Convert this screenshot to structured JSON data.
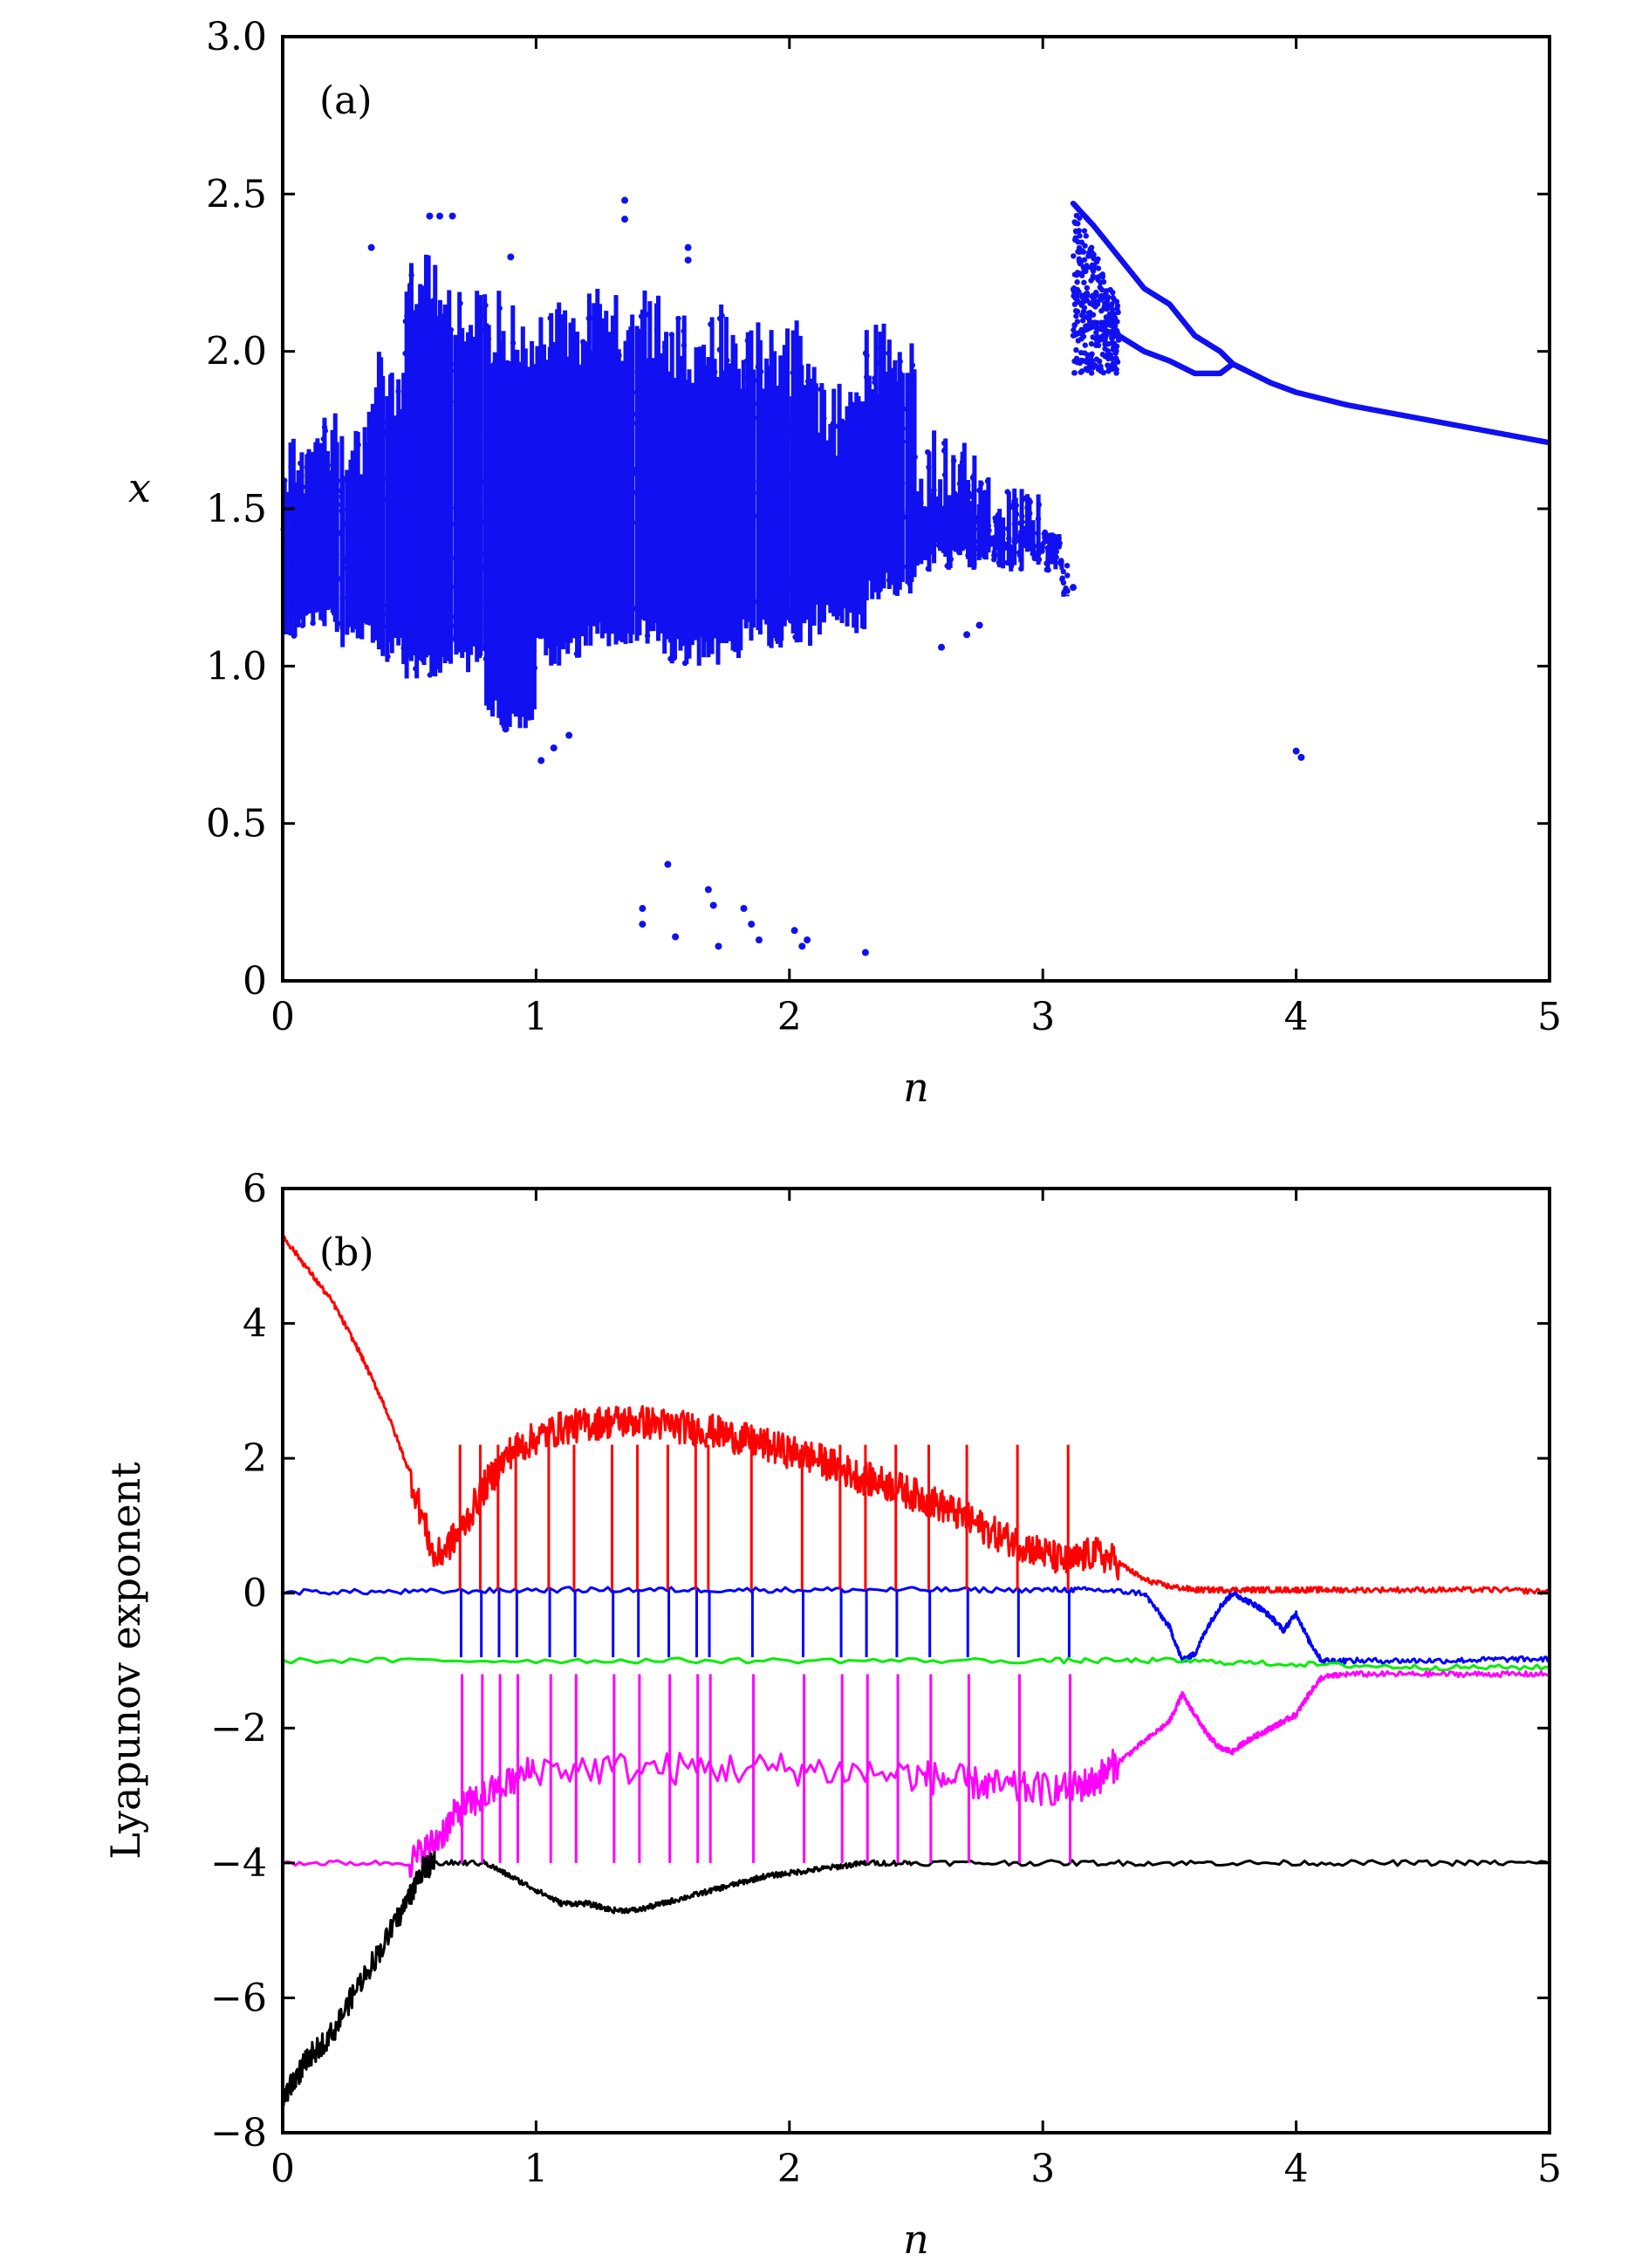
{
  "chart_data": [
    {
      "type": "scatter",
      "panel_label": "(a)",
      "xlabel": "n",
      "ylabel": "x",
      "xlim": [
        0,
        5
      ],
      "ylim": [
        0,
        3
      ],
      "xticks": [
        "0",
        "1",
        "2",
        "3",
        "4",
        "5"
      ],
      "yticks": [
        "0",
        "0.5",
        "1.0",
        "1.5",
        "2.0",
        "2.5",
        "3.0"
      ],
      "color": "#1010f0",
      "series": [
        {
          "bands": [
            {
              "x": [
                0.0,
                0.1
              ],
              "y": [
                1.08,
                1.75
              ]
            },
            {
              "x": [
                0.1,
                0.2
              ],
              "y": [
                1.1,
                1.8
              ]
            },
            {
              "x": [
                0.2,
                0.35
              ],
              "y": [
                1.05,
                1.85
              ]
            },
            {
              "x": [
                0.35,
                0.48
              ],
              "y": [
                1.0,
                2.0
              ]
            },
            {
              "x": [
                0.48,
                0.65
              ],
              "y": [
                0.95,
                2.35
              ]
            },
            {
              "x": [
                0.65,
                0.8
              ],
              "y": [
                0.98,
                2.2
              ]
            },
            {
              "x": [
                0.8,
                1.0
              ],
              "y": [
                0.8,
                2.2
              ]
            },
            {
              "x": [
                1.0,
                1.2
              ],
              "y": [
                1.0,
                2.2
              ]
            },
            {
              "x": [
                1.2,
                1.5
              ],
              "y": [
                1.05,
                2.2
              ]
            },
            {
              "x": [
                1.5,
                1.8
              ],
              "y": [
                1.0,
                2.15
              ]
            },
            {
              "x": [
                1.8,
                2.1
              ],
              "y": [
                1.05,
                2.1
              ]
            },
            {
              "x": [
                2.1,
                2.3
              ],
              "y": [
                1.1,
                1.9
              ]
            },
            {
              "x": [
                2.3,
                2.5
              ],
              "y": [
                1.2,
                2.1
              ]
            },
            {
              "x": [
                2.5,
                2.75
              ],
              "y": [
                1.3,
                1.75
              ]
            },
            {
              "x": [
                2.75,
                3.0
              ],
              "y": [
                1.3,
                1.6
              ]
            },
            {
              "x": [
                3.0,
                3.1
              ],
              "y": [
                1.3,
                1.45
              ]
            }
          ],
          "branch": {
            "x": [
              3.12,
              3.2,
              3.3,
              3.4,
              3.5,
              3.6,
              3.7,
              3.75,
              3.8,
              3.9,
              4.0,
              4.2,
              4.4,
              4.6,
              4.8,
              5.0
            ],
            "y": [
              2.05,
              2.08,
              2.05,
              2.0,
              1.97,
              1.93,
              1.93,
              1.96,
              1.94,
              1.9,
              1.87,
              1.83,
              1.8,
              1.77,
              1.74,
              1.71
            ]
          },
          "upper_branch": {
            "x": [
              3.12,
              3.2,
              3.3,
              3.4,
              3.5,
              3.6,
              3.7,
              3.75
            ],
            "y": [
              2.47,
              2.4,
              2.3,
              2.2,
              2.15,
              2.05,
              2.0,
              1.96
            ]
          },
          "isolated_points": [
            [
              0.35,
              2.33
            ],
            [
              0.58,
              2.43
            ],
            [
              0.62,
              2.43
            ],
            [
              0.67,
              2.43
            ],
            [
              0.9,
              2.3
            ],
            [
              1.02,
              0.7
            ],
            [
              1.07,
              0.74
            ],
            [
              1.13,
              0.78
            ],
            [
              0.88,
              0.8
            ],
            [
              1.35,
              2.48
            ],
            [
              1.35,
              2.42
            ],
            [
              1.6,
              2.33
            ],
            [
              1.6,
              2.29
            ],
            [
              1.42,
              0.23
            ],
            [
              1.42,
              0.18
            ],
            [
              1.52,
              0.37
            ],
            [
              1.55,
              0.14
            ],
            [
              1.68,
              0.29
            ],
            [
              1.7,
              0.24
            ],
            [
              1.72,
              0.11
            ],
            [
              1.82,
              0.23
            ],
            [
              1.85,
              0.18
            ],
            [
              1.88,
              0.13
            ],
            [
              2.02,
              0.16
            ],
            [
              2.05,
              0.11
            ],
            [
              2.07,
              0.13
            ],
            [
              2.3,
              0.09
            ],
            [
              4.0,
              0.73
            ],
            [
              4.02,
              0.71
            ],
            [
              2.75,
              1.13
            ],
            [
              2.7,
              1.1
            ],
            [
              2.6,
              1.06
            ],
            [
              3.12,
              1.25
            ]
          ]
        }
      ]
    },
    {
      "type": "line",
      "panel_label": "(b)",
      "xlabel": "n",
      "ylabel": "Lyapunov exponent",
      "xlim": [
        0,
        5
      ],
      "ylim": [
        -8,
        6
      ],
      "xticks": [
        "0",
        "1",
        "2",
        "3",
        "4",
        "5"
      ],
      "yticks": [
        "−8",
        "−6",
        "−4",
        "−2",
        "0",
        "2",
        "4",
        "6"
      ],
      "series": [
        {
          "color": "#ff0000",
          "x": [
            0.0,
            0.1,
            0.2,
            0.3,
            0.4,
            0.5,
            0.6,
            0.7,
            0.8,
            0.9,
            1.0,
            1.1,
            1.2,
            1.3,
            1.4,
            1.5,
            1.6,
            1.7,
            1.8,
            1.9,
            2.0,
            2.1,
            2.2,
            2.3,
            2.4,
            2.5,
            2.6,
            2.7,
            2.8,
            2.9,
            3.0,
            3.1,
            3.2,
            3.3,
            3.4,
            3.5,
            3.6,
            3.7,
            3.8,
            3.9,
            4.0,
            4.1,
            4.2,
            4.4,
            4.6,
            4.8,
            5.0
          ],
          "y": [
            5.3,
            4.8,
            4.3,
            3.6,
            2.8,
            1.8,
            0.5,
            0.9,
            1.6,
            2.1,
            2.3,
            2.45,
            2.5,
            2.55,
            2.55,
            2.5,
            2.45,
            2.4,
            2.3,
            2.2,
            2.1,
            2.0,
            1.85,
            1.7,
            1.6,
            1.45,
            1.3,
            1.1,
            0.9,
            0.75,
            0.6,
            0.45,
            0.6,
            0.45,
            0.2,
            0.1,
            0.05,
            0.05,
            0.05,
            0.05,
            0.05,
            0.05,
            0.05,
            0.05,
            0.05,
            0.05,
            0.02
          ]
        },
        {
          "color": "#0000ff",
          "x": [
            0.0,
            0.5,
            1.0,
            1.5,
            2.0,
            2.5,
            3.0,
            3.2,
            3.4,
            3.5,
            3.55,
            3.6,
            3.65,
            3.7,
            3.75,
            3.8,
            3.85,
            3.9,
            3.95,
            4.0,
            4.05,
            4.1,
            4.2,
            4.4,
            4.6,
            4.8,
            5.0
          ],
          "y": [
            0.02,
            0.02,
            0.05,
            0.05,
            0.05,
            0.05,
            0.05,
            0.05,
            0.0,
            -0.5,
            -1.0,
            -0.9,
            -0.5,
            -0.2,
            0.0,
            -0.1,
            -0.2,
            -0.35,
            -0.55,
            -0.3,
            -0.7,
            -1.0,
            -1.0,
            -1.0,
            -1.0,
            -0.98,
            -0.98
          ]
        },
        {
          "color": "#00ee00",
          "x": [
            0.0,
            1.0,
            2.0,
            3.0,
            3.5,
            4.0,
            4.5,
            5.0
          ],
          "y": [
            -1.0,
            -1.0,
            -1.0,
            -1.0,
            -1.0,
            -1.05,
            -1.1,
            -1.1
          ]
        },
        {
          "color": "#ff00ff",
          "x": [
            0.0,
            0.5,
            0.6,
            0.7,
            0.8,
            1.0,
            1.5,
            2.0,
            2.5,
            2.7,
            2.9,
            3.1,
            3.2,
            3.3,
            3.4,
            3.5,
            3.55,
            3.6,
            3.65,
            3.7,
            3.75,
            3.8,
            3.85,
            3.9,
            3.95,
            4.0,
            4.05,
            4.1,
            4.2,
            4.4,
            4.6,
            4.8,
            5.0
          ],
          "y": [
            -4.0,
            -4.0,
            -3.7,
            -3.2,
            -3.0,
            -2.6,
            -2.6,
            -2.6,
            -2.7,
            -2.8,
            -2.9,
            -2.9,
            -2.8,
            -2.5,
            -2.2,
            -1.9,
            -1.5,
            -1.8,
            -2.1,
            -2.3,
            -2.35,
            -2.2,
            -2.1,
            -2.0,
            -1.9,
            -1.8,
            -1.5,
            -1.25,
            -1.2,
            -1.2,
            -1.2,
            -1.2,
            -1.2
          ]
        },
        {
          "color": "#000000",
          "x": [
            0.0,
            0.05,
            0.1,
            0.2,
            0.3,
            0.4,
            0.5,
            0.55,
            0.6,
            0.8,
            0.9,
            1.0,
            1.1,
            1.2,
            1.3,
            1.4,
            1.5,
            1.6,
            1.7,
            1.8,
            1.9,
            2.0,
            2.1,
            2.2,
            2.3,
            2.5,
            3.0,
            3.5,
            4.0,
            4.5,
            5.0
          ],
          "y": [
            -7.5,
            -7.2,
            -6.9,
            -6.5,
            -5.8,
            -5.2,
            -4.5,
            -4.1,
            -4.0,
            -4.0,
            -4.2,
            -4.4,
            -4.6,
            -4.6,
            -4.7,
            -4.7,
            -4.6,
            -4.5,
            -4.4,
            -4.3,
            -4.2,
            -4.15,
            -4.1,
            -4.05,
            -4.0,
            -4.0,
            -4.0,
            -4.0,
            -4.0,
            -4.0,
            -4.0
          ]
        }
      ]
    }
  ]
}
